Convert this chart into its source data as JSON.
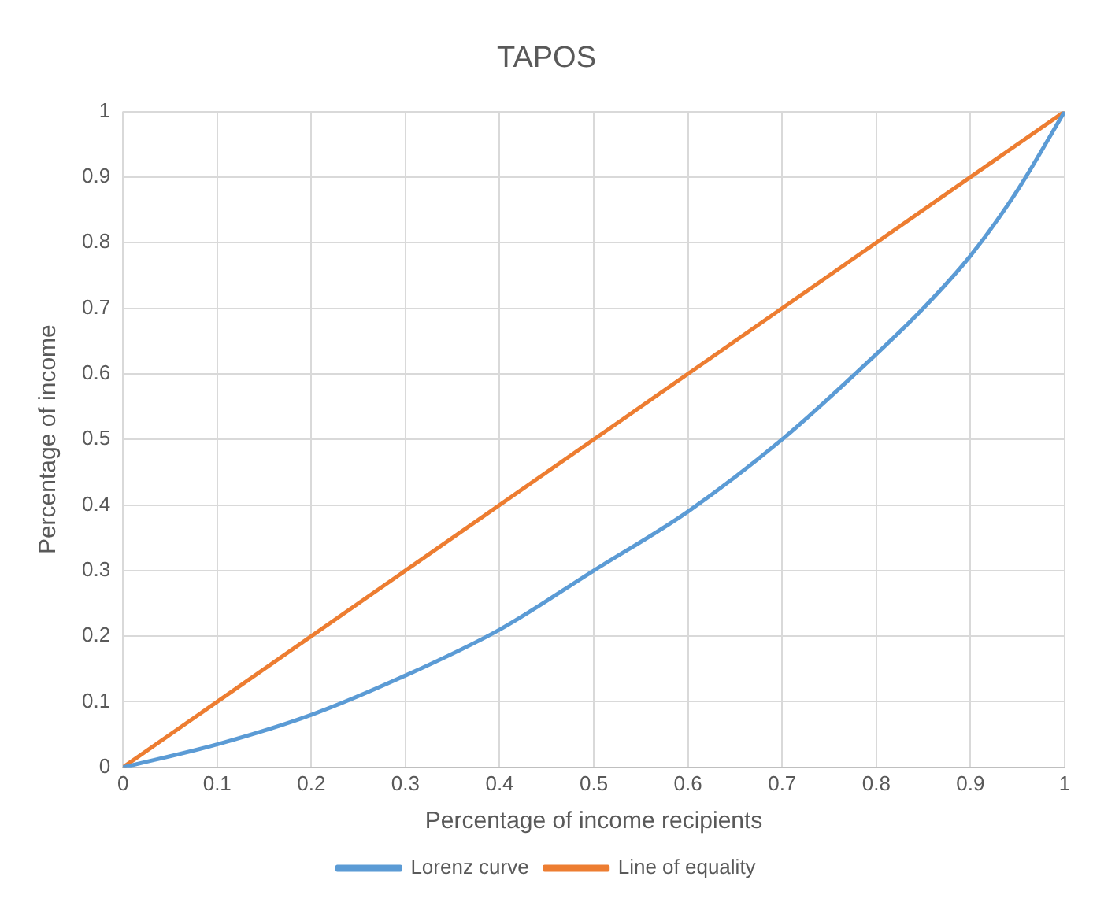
{
  "chart_data": {
    "type": "line",
    "title": "TAPOS",
    "xlabel": "Percentage of income recipients",
    "ylabel": "Percentage of income",
    "x": [
      0,
      0.1,
      0.2,
      0.3,
      0.4,
      0.5,
      0.6,
      0.7,
      0.8,
      0.85,
      0.9,
      0.95,
      1
    ],
    "series": [
      {
        "name": "Lorenz curve",
        "color": "#5b9bd5",
        "values": [
          0,
          0.035,
          0.08,
          0.14,
          0.21,
          0.3,
          0.39,
          0.5,
          0.63,
          0.7,
          0.78,
          0.88,
          1
        ]
      },
      {
        "name": "Line of equality",
        "color": "#ed7d31",
        "x": [
          0,
          1
        ],
        "values": [
          0,
          1
        ]
      }
    ],
    "xlim": [
      0,
      1
    ],
    "ylim": [
      0,
      1
    ],
    "xticks": [
      0,
      0.1,
      0.2,
      0.3,
      0.4,
      0.5,
      0.6,
      0.7,
      0.8,
      0.9,
      1
    ],
    "yticks": [
      0,
      0.1,
      0.2,
      0.3,
      0.4,
      0.5,
      0.6,
      0.7,
      0.8,
      0.9,
      1
    ],
    "grid": true,
    "legend": "bottom",
    "marker": "none",
    "line_style": "solid"
  }
}
